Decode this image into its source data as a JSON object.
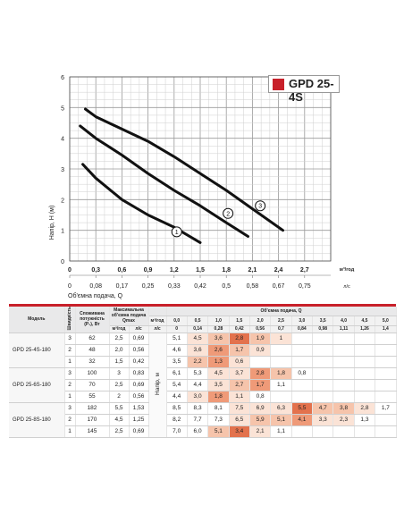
{
  "badge": {
    "label": "GPD 25-4S",
    "color": "#c8202a"
  },
  "chart_data": {
    "type": "line",
    "ylabel": "Напір, H (м)",
    "xlabel_top_unit": "м³/год",
    "xlabel_bottom_unit": "л/с",
    "xlabel_bottom": "Об'ємна подача, Q",
    "x_ticks": [
      "0",
      "0,3",
      "0,6",
      "0,9",
      "1,2",
      "1,5",
      "1,8",
      "2,1",
      "2,4",
      "2,7"
    ],
    "x_ticks_ls": [
      "0",
      "0,08",
      "0,17",
      "0,25",
      "0,33",
      "0,42",
      "0,5",
      "0,58",
      "0,67",
      "0,75"
    ],
    "y_ticks": [
      "0",
      "1",
      "2",
      "3",
      "4",
      "5",
      "6"
    ],
    "xlim": [
      0,
      3.0
    ],
    "ylim": [
      0,
      6
    ],
    "grid": true,
    "series": [
      {
        "name": "1",
        "x": [
          0.15,
          0.3,
          0.6,
          0.9,
          1.2,
          1.5
        ],
        "y": [
          3.15,
          2.7,
          2.0,
          1.5,
          1.1,
          0.6
        ]
      },
      {
        "name": "2",
        "x": [
          0.12,
          0.3,
          0.6,
          0.9,
          1.2,
          1.5,
          1.8,
          2.05
        ],
        "y": [
          4.4,
          4.0,
          3.45,
          2.85,
          2.3,
          1.8,
          1.25,
          0.8
        ]
      },
      {
        "name": "3",
        "x": [
          0.18,
          0.3,
          0.6,
          0.9,
          1.2,
          1.5,
          1.8,
          2.1,
          2.45
        ],
        "y": [
          4.95,
          4.7,
          4.3,
          3.9,
          3.4,
          2.85,
          2.3,
          1.7,
          1.0
        ]
      }
    ],
    "series_labels": [
      {
        "text": "1",
        "x": 1.23,
        "y": 0.95
      },
      {
        "text": "2",
        "x": 1.82,
        "y": 1.55
      },
      {
        "text": "3",
        "x": 2.19,
        "y": 1.8
      }
    ]
  },
  "table": {
    "headers": {
      "model": "Модель",
      "speed": "Швидкість",
      "power": "Споживана потужність (P₁), Вт",
      "maxflow": "Максимальна об'ємна подача Qmax",
      "flow_group": "Об'ємна подача, Q",
      "m3h": "м³/год",
      "ls": "л/с",
      "head": "Напір, м",
      "maxflow_m3h": "м³/год",
      "maxflow_ls": "л/с"
    },
    "q_m3h": [
      "0,0",
      "0,5",
      "1,0",
      "1,5",
      "2,0",
      "2,5",
      "3,0",
      "3,5",
      "4,0",
      "4,5",
      "5,0"
    ],
    "q_ls": [
      "0",
      "0,14",
      "0,28",
      "0,42",
      "0,56",
      "0,7",
      "0,84",
      "0,98",
      "1,11",
      "1,26",
      "1,4"
    ],
    "rows": [
      {
        "model": "GPD 25-4S-180",
        "speed": "3",
        "power": "62",
        "qmax_m3h": "2,5",
        "qmax_ls": "0,69",
        "values": [
          "5,1",
          "4,5",
          "3,6",
          "2,8",
          "1,9",
          "1",
          "",
          "",
          "",
          "",
          ""
        ]
      },
      {
        "model": "",
        "speed": "2",
        "power": "48",
        "qmax_m3h": "2,0",
        "qmax_ls": "0,56",
        "values": [
          "4,6",
          "3,6",
          "2,6",
          "1,7",
          "0,9",
          "",
          "",
          "",
          "",
          "",
          ""
        ]
      },
      {
        "model": "",
        "speed": "1",
        "power": "32",
        "qmax_m3h": "1,5",
        "qmax_ls": "0,42",
        "values": [
          "3,5",
          "2,2",
          "1,3",
          "0,6",
          "",
          "",
          "",
          "",
          "",
          "",
          ""
        ]
      },
      {
        "model": "GPD 25-6S-180",
        "speed": "3",
        "power": "100",
        "qmax_m3h": "3",
        "qmax_ls": "0,83",
        "values": [
          "6,1",
          "5,3",
          "4,5",
          "3,7",
          "2,8",
          "1,8",
          "0,8",
          "",
          "",
          "",
          ""
        ]
      },
      {
        "model": "",
        "speed": "2",
        "power": "70",
        "qmax_m3h": "2,5",
        "qmax_ls": "0,69",
        "values": [
          "5,4",
          "4,4",
          "3,5",
          "2,7",
          "1,7",
          "1,1",
          "",
          "",
          "",
          "",
          ""
        ]
      },
      {
        "model": "",
        "speed": "1",
        "power": "55",
        "qmax_m3h": "2",
        "qmax_ls": "0,56",
        "values": [
          "4,4",
          "3,0",
          "1,8",
          "1,1",
          "0,8",
          "",
          "",
          "",
          "",
          "",
          ""
        ]
      },
      {
        "model": "GPD 25-8S-180",
        "speed": "3",
        "power": "182",
        "qmax_m3h": "5,5",
        "qmax_ls": "1,53",
        "values": [
          "8,5",
          "8,3",
          "8,1",
          "7,5",
          "6,9",
          "6,3",
          "5,5",
          "4,7",
          "3,8",
          "2,8",
          "1,7"
        ]
      },
      {
        "model": "",
        "speed": "2",
        "power": "170",
        "qmax_m3h": "4,5",
        "qmax_ls": "1,25",
        "values": [
          "8,2",
          "7,7",
          "7,3",
          "6,5",
          "5,9",
          "5,1",
          "4,1",
          "3,3",
          "2,3",
          "1,3",
          ""
        ]
      },
      {
        "model": "",
        "speed": "1",
        "power": "145",
        "qmax_m3h": "2,5",
        "qmax_ls": "0,69",
        "values": [
          "7,0",
          "6,0",
          "5,1",
          "3,4",
          "2,1",
          "1,1",
          "",
          "",
          "",
          "",
          ""
        ]
      }
    ],
    "heat_colors": [
      "#ffffff",
      "#fbe3d6",
      "#f6c4ab",
      "#ef9a78",
      "#e3724d"
    ]
  }
}
